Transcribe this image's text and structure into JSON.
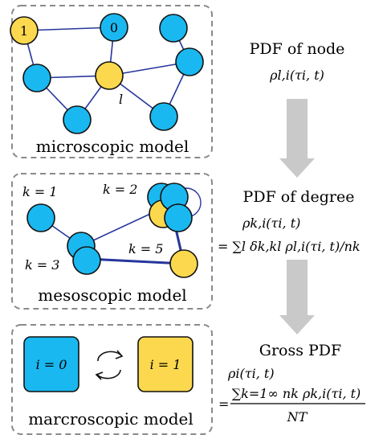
{
  "colors": {
    "node_blue": "#1ab8f0",
    "node_yellow": "#fbd84e",
    "edge": "#27369b",
    "panel_border": "#8a8a8a",
    "arrow": "#c9c9c9"
  },
  "panels": {
    "micro": {
      "caption": "microscopic model",
      "node_labels": {
        "a": "1",
        "b": "0",
        "center": "l"
      }
    },
    "meso": {
      "caption": "mesoscopic model",
      "degree_labels": {
        "k1": "k = 1",
        "k2": "k = 2",
        "k3": "k = 3",
        "k5": "k = 5"
      }
    },
    "macro": {
      "caption": "marcroscopic model",
      "state0": "i = 0",
      "state1": "i = 1",
      "swap_icon": "cycle-arrows-icon"
    }
  },
  "right": {
    "node_pdf": {
      "heading": "PDF of node",
      "formula": "ρl,i(τi, t)"
    },
    "degree_pdf": {
      "heading": "PDF of degree",
      "formula_line1": "ρk,i(τi, t)",
      "formula_line2": "= ∑l δk,kl ρl,i(τi, t)/nk"
    },
    "gross_pdf": {
      "heading": "Gross PDF",
      "formula_line1": "ρi(τi, t)",
      "numerator": "∑k=1∞ nk ρk,i(τi, t)",
      "denominator": "NT"
    },
    "down_arrow_icon": "down-arrow-icon"
  }
}
